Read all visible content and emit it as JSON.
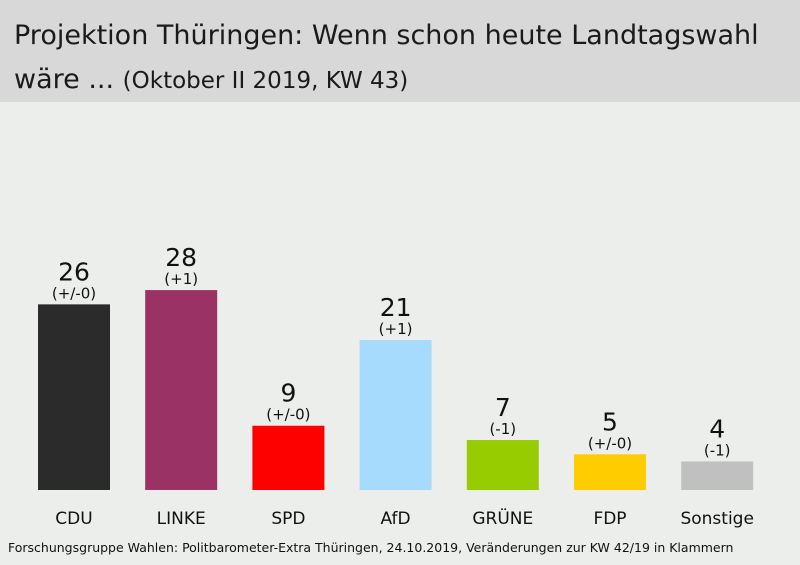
{
  "chart_data": {
    "type": "bar",
    "title": "Projektion Thüringen: Wenn schon heute Landtagswahl wäre ...",
    "subtitle": "(Oktober II 2019, KW 43)",
    "categories": [
      "CDU",
      "LINKE",
      "SPD",
      "AfD",
      "GRÜNE",
      "FDP",
      "Sonstige"
    ],
    "values": [
      26,
      28,
      9,
      21,
      7,
      5,
      4
    ],
    "changes": [
      "(+/-0)",
      "(+1)",
      "(+/-0)",
      "(+1)",
      "(-1)",
      "(+/-0)",
      "(-1)"
    ],
    "colors": [
      "#2b2b2b",
      "#9a3266",
      "#fd0000",
      "#a6dbfd",
      "#97cd00",
      "#ffcc00",
      "#c0c0c0"
    ],
    "ylim": [
      0,
      28
    ],
    "grid": false,
    "legend": false,
    "source": "Forschungsgruppe Wahlen: Politbarometer-Extra Thüringen, 24.10.2019, Veränderungen zur KW 42/19 in Klammern"
  }
}
